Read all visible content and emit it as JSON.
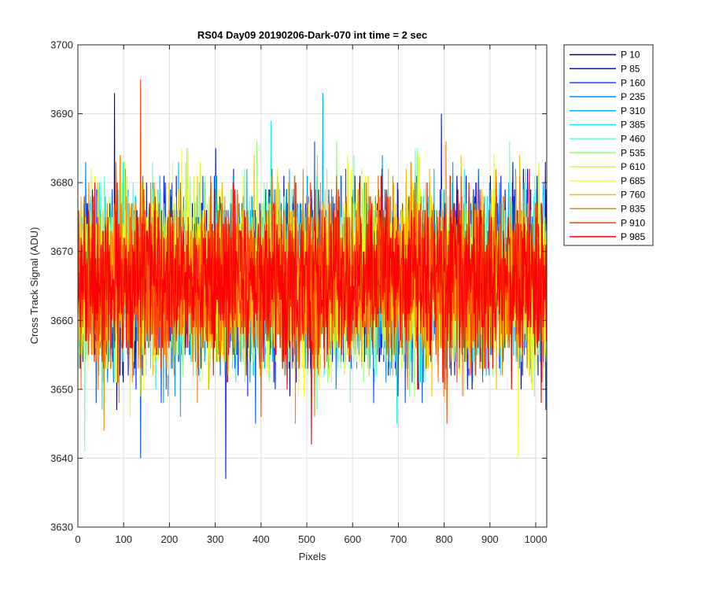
{
  "chart_data": {
    "type": "line",
    "title": "RS04 Day09 20190206-Dark-070 int time = 2 sec",
    "xlabel": "Pixels",
    "ylabel": "Cross Track Signal (ADU)",
    "xlim": [
      0,
      1024
    ],
    "ylim": [
      3630,
      3700
    ],
    "xticks": [
      0,
      100,
      200,
      300,
      400,
      500,
      600,
      700,
      800,
      900,
      1000
    ],
    "yticks": [
      3630,
      3640,
      3650,
      3660,
      3670,
      3680,
      3690,
      3700
    ],
    "grid": true,
    "legend_position": "outside-top-right",
    "samples_per_series": 1024,
    "noise_center": 3666,
    "noise_sigma": 6,
    "series": [
      {
        "name": "P 10",
        "color": "#00008f"
      },
      {
        "name": "P 85",
        "color": "#0010ff"
      },
      {
        "name": "P 160",
        "color": "#0050ff"
      },
      {
        "name": "P 235",
        "color": "#008fff"
      },
      {
        "name": "P 310",
        "color": "#00b4ff"
      },
      {
        "name": "P 385",
        "color": "#10f0ef"
      },
      {
        "name": "P 460",
        "color": "#6fffbf"
      },
      {
        "name": "P 535",
        "color": "#8fff70"
      },
      {
        "name": "P 610",
        "color": "#cfff30"
      },
      {
        "name": "P 685",
        "color": "#ffff00"
      },
      {
        "name": "P 760",
        "color": "#f0c000"
      },
      {
        "name": "P 835",
        "color": "#ff8000"
      },
      {
        "name": "P 910",
        "color": "#ff4000"
      },
      {
        "name": "P 985",
        "color": "#ff0000"
      }
    ],
    "notable_points": [
      {
        "series": "P 910",
        "x": 137,
        "y": 3695
      },
      {
        "series": "P 85",
        "x": 323,
        "y": 3637
      },
      {
        "series": "P 160",
        "x": 137,
        "y": 3640
      },
      {
        "series": "P 685",
        "x": 962,
        "y": 3640
      },
      {
        "series": "P 460",
        "x": 15,
        "y": 3641
      },
      {
        "series": "P 310",
        "x": 535,
        "y": 3693
      },
      {
        "series": "P 10",
        "x": 80,
        "y": 3693
      }
    ]
  }
}
